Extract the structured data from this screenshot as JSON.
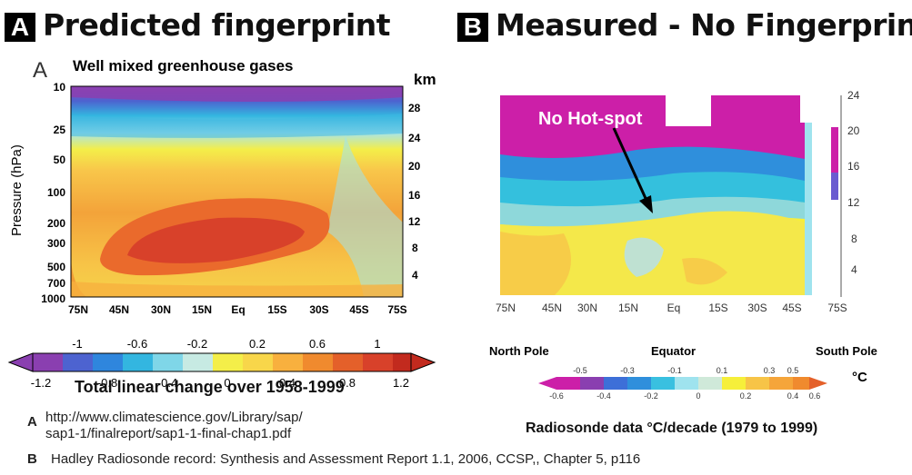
{
  "panel_a": {
    "badge": "A",
    "title": "Predicted fingerprint",
    "letter": "A",
    "subtitle": "Well mixed greenhouse gases",
    "km_label": "km",
    "ylabel": "Pressure (hPa)",
    "colorbar_title": "Total linear change over 1958-1999"
  },
  "panel_b": {
    "badge": "B",
    "title": "Measured - No Fingerprint",
    "annotation": "No Hot-spot",
    "north_pole": "North Pole",
    "equator": "Equator",
    "south_pole": "South Pole",
    "unit": "°C",
    "caption": "Radiosonde data °C/decade (1979 to 1999)"
  },
  "references": {
    "a_letter": "A",
    "a_line1": "http://www.climatescience.gov/Library/sap/",
    "a_line2": "sap1-1/finalreport/sap1-1-final-chap1.pdf",
    "b_letter": "B",
    "b_line": "Hadley Radiosonde record: Synthesis and Assessment Report 1.1, 2006, CCSP,, Chapter 5, p116"
  },
  "colors": {
    "magenta": "#cc1fa8",
    "purple": "#8a3fb0",
    "blue": "#3d6fd8",
    "cyan": "#39c0e0",
    "light_cyan": "#9fe3ee",
    "pale": "#cfe9d9",
    "yellow": "#f6ef3a",
    "light_orange": "#f7c447",
    "orange": "#f08a2e",
    "red": "#d8412a",
    "dark_red": "#c22a1e"
  },
  "chart_data": [
    {
      "type": "heatmap",
      "title": "Well mixed greenhouse gases",
      "xlabel": "",
      "ylabel": "Pressure (hPa)",
      "x_ticks": [
        "75N",
        "45N",
        "30N",
        "15N",
        "Eq",
        "15S",
        "30S",
        "45S",
        "75S"
      ],
      "y_ticks": [
        10,
        25,
        50,
        100,
        200,
        300,
        500,
        700,
        1000
      ],
      "y2_ticks": [
        28,
        24,
        20,
        16,
        12,
        8,
        4
      ],
      "y2_label": "km",
      "colorbar": {
        "title": "Total linear change over 1958-1999",
        "ticks_top": [
          "-1",
          "-0.6",
          "-0.2",
          "0.2",
          "0.6",
          "1"
        ],
        "ticks_bottom": [
          "-1.2",
          "-0.8",
          "-0.4",
          "0",
          "0.4",
          "0.8",
          "1.2"
        ],
        "range": [
          -1.2,
          1.2
        ]
      }
    },
    {
      "type": "heatmap",
      "title": "",
      "caption": "Radiosonde data °C/decade (1979 to 1999)",
      "x_ticks": [
        "75N",
        "45N",
        "30N",
        "15N",
        "Eq",
        "15S",
        "30S",
        "45S",
        "75S"
      ],
      "y2_ticks": [
        24,
        20,
        16,
        12,
        8,
        4
      ],
      "annotation": "No Hot-spot",
      "colorbar": {
        "unit": "°C",
        "ticks_top": [
          "-0.5",
          "-0.3",
          "-0.1",
          "0.1",
          "0.3",
          "0.5"
        ],
        "ticks_bottom": [
          "-0.6",
          "-0.4",
          "-0.2",
          "0",
          "0.2",
          "0.4",
          "0.6"
        ],
        "range": [
          -0.6,
          0.6
        ]
      }
    }
  ]
}
